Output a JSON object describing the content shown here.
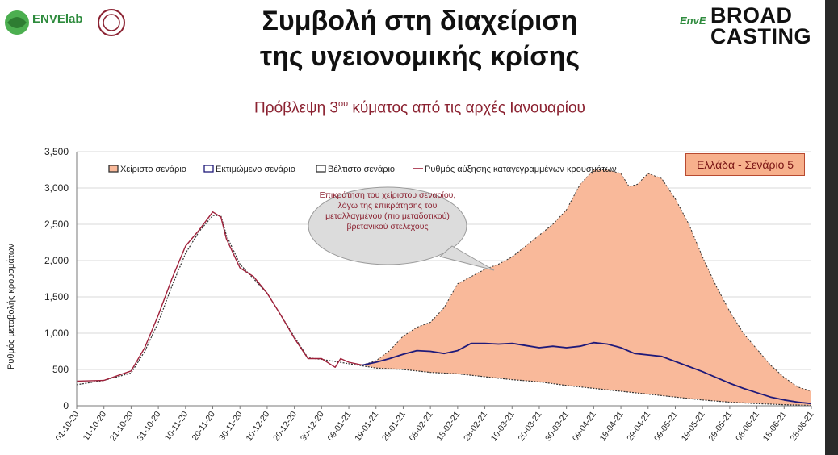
{
  "header": {
    "title_line1": "Συμβολή στη διαχείριση",
    "title_line2": "της υγειονομικής κρίσης",
    "subtitle_pre": "Πρόβλεψη 3",
    "subtitle_sup": "ου",
    "subtitle_post": " κύματος από τις αρχές Ιανουαρίου"
  },
  "logos": {
    "left_text": "ENVElab",
    "right_text": "EnvE",
    "broadcast_line1": "BROAD",
    "broadcast_line2": "CASTING"
  },
  "annotation": {
    "bubble": "Επικράτηση του χείριστου σεναρίου, λόγω της επικράτησης του μεταλλαγμένου (πιο μεταδοτικού) βρετανικού στελέχους",
    "scenario_label": "Ελλάδα - Σενάριο 5"
  },
  "colors": {
    "worst_fill": "#f9b99a",
    "estimated_line": "#1f1a7a",
    "recorded_line": "#a0203a",
    "best_line": "#333333"
  },
  "chart_data": {
    "type": "area",
    "title": "",
    "xlabel": "",
    "ylabel": "Ρυθμός μεταβολής κρουσμάτων",
    "ylim": [
      0,
      3500
    ],
    "yticks": [
      "0",
      "500",
      "1,000",
      "1,500",
      "2,000",
      "2,500",
      "3,000",
      "3,500"
    ],
    "grid": true,
    "legend_position": "top",
    "x_labels": [
      "01-10-20",
      "11-10-20",
      "21-10-20",
      "31-10-20",
      "10-11-20",
      "20-11-20",
      "30-11-20",
      "10-12-20",
      "20-12-20",
      "30-12-20",
      "09-01-21",
      "19-01-21",
      "29-01-21",
      "08-02-21",
      "18-02-21",
      "28-02-21",
      "10-03-21",
      "20-03-21",
      "30-03-21",
      "09-04-21",
      "19-04-21",
      "29-04-21",
      "09-05-21",
      "19-05-21",
      "29-05-21",
      "08-06-21",
      "18-06-21",
      "28-06-21"
    ],
    "series": [
      {
        "name": "Ρυθμός αύξησης καταγεγραμμένων κρουσμάτων",
        "x": [
          "01-10-20",
          "11-10-20",
          "21-10-20",
          "26-10-20",
          "31-10-20",
          "05-11-20",
          "10-11-20",
          "15-11-20",
          "20-11-20",
          "23-11-20",
          "25-11-20",
          "30-11-20",
          "05-12-20",
          "10-12-20",
          "15-12-20",
          "20-12-20",
          "25-12-20",
          "30-12-20",
          "04-01-21",
          "06-01-21",
          "09-01-21",
          "14-01-21"
        ],
        "values": [
          340,
          350,
          480,
          800,
          1250,
          1750,
          2200,
          2420,
          2670,
          2600,
          2300,
          1900,
          1780,
          1550,
          1250,
          930,
          650,
          650,
          530,
          650,
          600,
          560
        ]
      },
      {
        "name": "Βέλτιστο σενάριο",
        "x": [
          "01-10-20",
          "11-10-20",
          "21-10-20",
          "26-10-20",
          "31-10-20",
          "05-11-20",
          "10-11-20",
          "15-11-20",
          "20-11-20",
          "23-11-20",
          "25-11-20",
          "30-11-20",
          "05-12-20",
          "10-12-20",
          "15-12-20",
          "20-12-20",
          "25-12-20",
          "30-12-20",
          "09-01-21",
          "19-01-21",
          "29-01-21",
          "08-02-21",
          "18-02-21",
          "28-02-21",
          "10-03-21",
          "20-03-21",
          "30-03-21",
          "09-04-21",
          "19-04-21",
          "29-04-21",
          "09-05-21",
          "19-05-21",
          "29-05-21",
          "08-06-21",
          "18-06-21",
          "28-06-21"
        ],
        "values": [
          290,
          350,
          450,
          750,
          1150,
          1650,
          2100,
          2400,
          2620,
          2620,
          2350,
          1950,
          1750,
          1550,
          1250,
          950,
          660,
          640,
          580,
          520,
          500,
          460,
          440,
          400,
          360,
          330,
          280,
          240,
          200,
          160,
          120,
          80,
          50,
          30,
          15,
          5
        ]
      },
      {
        "name": "Εκτιμώμενο σενάριο",
        "x": [
          "14-01-21",
          "19-01-21",
          "24-01-21",
          "29-01-21",
          "03-02-21",
          "08-02-21",
          "13-02-21",
          "18-02-21",
          "23-02-21",
          "28-02-21",
          "05-03-21",
          "10-03-21",
          "15-03-21",
          "20-03-21",
          "25-03-21",
          "30-03-21",
          "04-04-21",
          "09-04-21",
          "14-04-21",
          "19-04-21",
          "24-04-21",
          "29-04-21",
          "04-05-21",
          "09-05-21",
          "14-05-21",
          "19-05-21",
          "24-05-21",
          "29-05-21",
          "03-06-21",
          "08-06-21",
          "13-06-21",
          "18-06-21",
          "23-06-21",
          "28-06-21"
        ],
        "values": [
          560,
          600,
          650,
          710,
          760,
          750,
          720,
          760,
          860,
          860,
          850,
          860,
          830,
          800,
          820,
          800,
          820,
          870,
          850,
          800,
          720,
          700,
          680,
          610,
          540,
          470,
          390,
          310,
          240,
          180,
          120,
          80,
          50,
          30
        ]
      },
      {
        "name": "Χείριστο σενάριο",
        "x": [
          "14-01-21",
          "19-01-21",
          "24-01-21",
          "29-01-21",
          "03-02-21",
          "08-02-21",
          "13-02-21",
          "18-02-21",
          "23-02-21",
          "28-02-21",
          "05-03-21",
          "10-03-21",
          "15-03-21",
          "20-03-21",
          "25-03-21",
          "30-03-21",
          "04-04-21",
          "09-04-21",
          "14-04-21",
          "19-04-21",
          "22-04-21",
          "25-04-21",
          "29-04-21",
          "04-05-21",
          "09-05-21",
          "14-05-21",
          "19-05-21",
          "24-05-21",
          "29-05-21",
          "03-06-21",
          "08-06-21",
          "13-06-21",
          "18-06-21",
          "23-06-21",
          "28-06-21"
        ],
        "values": [
          560,
          620,
          760,
          960,
          1080,
          1150,
          1350,
          1680,
          1780,
          1880,
          1950,
          2050,
          2200,
          2350,
          2500,
          2700,
          3050,
          3250,
          3250,
          3200,
          3020,
          3050,
          3200,
          3130,
          2850,
          2500,
          2050,
          1650,
          1300,
          1000,
          780,
          560,
          390,
          260,
          200
        ]
      }
    ]
  }
}
